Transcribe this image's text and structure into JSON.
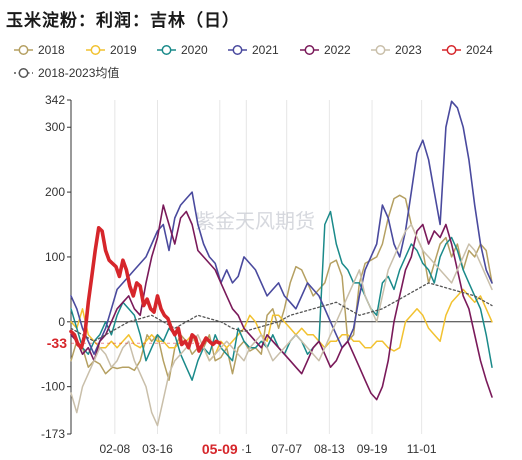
{
  "page": {
    "title": "玉米淀粉：利润：吉林（日）"
  },
  "watermark": "紫金天风期货",
  "chart_data": {
    "type": "line",
    "title": "玉米淀粉：利润：吉林（日）",
    "x_domain": [
      0,
      365
    ],
    "ylim": [
      -173,
      342
    ],
    "y_ticks": [
      342,
      300,
      200,
      100,
      0,
      -100,
      -173
    ],
    "x_ticks": [
      {
        "label": "02-08",
        "x": 38
      },
      {
        "label": "03-16",
        "x": 75
      },
      {
        "label": "05-09",
        "x": 129,
        "highlight": true
      },
      {
        "label": "·1",
        "x": 152
      },
      {
        "label": "07-07",
        "x": 187
      },
      {
        "label": "08-13",
        "x": 224
      },
      {
        "label": "09-19",
        "x": 261
      },
      {
        "label": "11-01",
        "x": 304
      }
    ],
    "latest": {
      "value": -33,
      "label": "-33"
    },
    "series": [
      {
        "name": "2018",
        "color": "#b5a062",
        "width": 1.5,
        "marker": "circle",
        "x": [
          0,
          5,
          10,
          15,
          20,
          25,
          30,
          36,
          40,
          45,
          50,
          55,
          60,
          66,
          70,
          75,
          80,
          85,
          90,
          95,
          100,
          105,
          110,
          115,
          120,
          125,
          130,
          135,
          140,
          145,
          150,
          155,
          160,
          165,
          170,
          175,
          180,
          185,
          190,
          195,
          200,
          205,
          210,
          215,
          220,
          225,
          230,
          235,
          240,
          245,
          250,
          255,
          260,
          265,
          270,
          275,
          280,
          285,
          290,
          295,
          300,
          305,
          310,
          315,
          320,
          325,
          330,
          335,
          340,
          345,
          350,
          355,
          360,
          365
        ],
        "y": [
          -60,
          -30,
          -40,
          -70,
          -60,
          -65,
          -80,
          -70,
          -72,
          -70,
          -70,
          -75,
          -60,
          -20,
          -30,
          -20,
          -60,
          -90,
          -40,
          -20,
          -30,
          -50,
          -40,
          -40,
          -20,
          -60,
          -55,
          -40,
          -80,
          -40,
          -30,
          -45,
          -40,
          -50,
          10,
          20,
          -10,
          20,
          60,
          85,
          80,
          60,
          40,
          50,
          60,
          90,
          95,
          70,
          -30,
          -20,
          60,
          90,
          95,
          100,
          120,
          160,
          190,
          195,
          190,
          150,
          130,
          110,
          60,
          90,
          120,
          130,
          100,
          120,
          80,
          110,
          100,
          120,
          110,
          60
        ]
      },
      {
        "name": "2019",
        "color": "#f2c230",
        "width": 1.5,
        "marker": "circle",
        "x": [
          0,
          5,
          10,
          15,
          20,
          25,
          30,
          35,
          40,
          45,
          50,
          55,
          60,
          65,
          70,
          75,
          80,
          85,
          90,
          95,
          100,
          105,
          110,
          115,
          120,
          125,
          130,
          135,
          140,
          145,
          150,
          155,
          160,
          165,
          170,
          175,
          180,
          185,
          190,
          195,
          200,
          205,
          210,
          215,
          220,
          225,
          230,
          235,
          240,
          245,
          250,
          255,
          260,
          265,
          270,
          275,
          280,
          285,
          290,
          295,
          300,
          305,
          310,
          315,
          320,
          325,
          330,
          335,
          340,
          345,
          350,
          355,
          360,
          365
        ],
        "y": [
          0,
          -10,
          20,
          -20,
          -30,
          -40,
          -40,
          -30,
          -40,
          -30,
          -20,
          -35,
          -40,
          -30,
          -20,
          -30,
          -30,
          -40,
          -40,
          -30,
          -30,
          -20,
          -40,
          -40,
          -60,
          -50,
          -30,
          -40,
          -30,
          -20,
          -10,
          10,
          0,
          -20,
          -30,
          10,
          10,
          0,
          -10,
          -20,
          -10,
          -20,
          -20,
          -30,
          -40,
          -30,
          -30,
          -20,
          -20,
          -30,
          -30,
          -40,
          -40,
          -30,
          -30,
          -40,
          -45,
          -40,
          0,
          10,
          20,
          10,
          -10,
          -20,
          -30,
          10,
          30,
          40,
          50,
          40,
          30,
          40,
          20,
          0
        ]
      },
      {
        "name": "2020",
        "color": "#1a8a8a",
        "width": 1.5,
        "marker": "circle",
        "x": [
          0,
          5,
          10,
          15,
          20,
          25,
          30,
          35,
          40,
          45,
          50,
          55,
          60,
          65,
          70,
          75,
          80,
          85,
          90,
          95,
          100,
          105,
          110,
          115,
          120,
          125,
          130,
          135,
          140,
          145,
          150,
          155,
          160,
          165,
          170,
          175,
          180,
          185,
          190,
          195,
          200,
          205,
          210,
          215,
          220,
          225,
          230,
          235,
          240,
          245,
          250,
          255,
          260,
          265,
          270,
          275,
          280,
          285,
          290,
          295,
          300,
          305,
          310,
          315,
          320,
          325,
          330,
          335,
          340,
          345,
          350,
          355,
          360,
          365
        ],
        "y": [
          20,
          -10,
          -40,
          -50,
          -30,
          -20,
          0,
          -20,
          10,
          30,
          20,
          10,
          -20,
          -60,
          -40,
          -20,
          -30,
          -10,
          -20,
          -50,
          -70,
          -90,
          -60,
          -40,
          -50,
          -20,
          -40,
          -50,
          -60,
          -10,
          -30,
          -40,
          -40,
          -30,
          -40,
          -20,
          -40,
          -50,
          -30,
          -20,
          -30,
          -50,
          -40,
          -30,
          150,
          170,
          120,
          90,
          80,
          60,
          60,
          40,
          20,
          10,
          60,
          70,
          50,
          80,
          100,
          120,
          110,
          90,
          80,
          60,
          100,
          120,
          130,
          110,
          80,
          60,
          40,
          20,
          -20,
          -70
        ]
      },
      {
        "name": "2021",
        "color": "#4a4a9e",
        "width": 1.6,
        "marker": "circle",
        "x": [
          0,
          5,
          10,
          15,
          20,
          25,
          30,
          35,
          40,
          45,
          50,
          55,
          60,
          65,
          70,
          75,
          80,
          85,
          90,
          95,
          100,
          105,
          110,
          115,
          120,
          125,
          130,
          135,
          140,
          145,
          150,
          155,
          160,
          165,
          170,
          175,
          180,
          185,
          190,
          195,
          200,
          205,
          210,
          215,
          220,
          225,
          230,
          235,
          240,
          245,
          250,
          255,
          260,
          265,
          270,
          275,
          280,
          285,
          290,
          295,
          300,
          305,
          310,
          315,
          320,
          325,
          330,
          335,
          340,
          345,
          350,
          355,
          360,
          365
        ],
        "y": [
          40,
          20,
          -10,
          -30,
          -50,
          -30,
          -10,
          20,
          50,
          60,
          70,
          80,
          90,
          100,
          120,
          140,
          150,
          110,
          160,
          180,
          190,
          200,
          150,
          120,
          100,
          90,
          60,
          80,
          60,
          70,
          100,
          90,
          80,
          60,
          40,
          50,
          60,
          40,
          30,
          20,
          40,
          60,
          50,
          40,
          20,
          0,
          -20,
          -40,
          -30,
          -10,
          40,
          80,
          100,
          120,
          180,
          160,
          120,
          100,
          140,
          200,
          260,
          280,
          250,
          200,
          150,
          300,
          340,
          330,
          300,
          250,
          180,
          120,
          80,
          60
        ]
      },
      {
        "name": "2022",
        "color": "#7a1a5a",
        "width": 1.6,
        "marker": "circle",
        "x": [
          0,
          5,
          10,
          15,
          20,
          25,
          30,
          35,
          40,
          45,
          50,
          55,
          60,
          65,
          70,
          75,
          80,
          85,
          90,
          95,
          100,
          105,
          110,
          115,
          120,
          125,
          130,
          135,
          140,
          145,
          150,
          155,
          160,
          165,
          170,
          175,
          180,
          185,
          190,
          195,
          200,
          205,
          210,
          215,
          220,
          225,
          230,
          235,
          240,
          245,
          250,
          255,
          260,
          265,
          270,
          275,
          280,
          285,
          290,
          295,
          300,
          305,
          310,
          315,
          320,
          325,
          330,
          335,
          340,
          345,
          350,
          355,
          360,
          365
        ],
        "y": [
          -20,
          -30,
          -50,
          -40,
          -60,
          -30,
          -20,
          0,
          20,
          30,
          40,
          20,
          10,
          60,
          100,
          130,
          180,
          150,
          120,
          160,
          170,
          150,
          110,
          100,
          90,
          80,
          60,
          40,
          20,
          10,
          -10,
          -20,
          -30,
          -40,
          -20,
          -30,
          -40,
          -50,
          -60,
          -70,
          -80,
          -60,
          -40,
          -30,
          -50,
          -70,
          -60,
          -40,
          -30,
          -50,
          -70,
          -90,
          -110,
          -120,
          -100,
          -60,
          0,
          40,
          80,
          100,
          140,
          150,
          120,
          140,
          130,
          150,
          120,
          80,
          40,
          20,
          -20,
          -60,
          -90,
          -116
        ]
      },
      {
        "name": "2023",
        "color": "#c9bfaa",
        "width": 1.5,
        "marker": "circle",
        "x": [
          0,
          5,
          10,
          15,
          20,
          25,
          30,
          35,
          40,
          45,
          50,
          55,
          60,
          65,
          70,
          75,
          80,
          85,
          90,
          95,
          100,
          105,
          110,
          115,
          120,
          125,
          130,
          135,
          140,
          145,
          150,
          155,
          160,
          165,
          170,
          175,
          180,
          185,
          190,
          195,
          200,
          205,
          210,
          215,
          220,
          225,
          230,
          235,
          240,
          245,
          250,
          255,
          260,
          265,
          270,
          275,
          280,
          285,
          290,
          295,
          300,
          305,
          310,
          315,
          320,
          325,
          330,
          335,
          340,
          345,
          350,
          355,
          360,
          365
        ],
        "y": [
          -110,
          -140,
          -100,
          -80,
          -60,
          -40,
          -50,
          -70,
          -60,
          -40,
          -30,
          -60,
          -80,
          -100,
          -140,
          -160,
          -120,
          -80,
          -60,
          -50,
          -40,
          -30,
          -20,
          -40,
          -60,
          -50,
          -40,
          -30,
          -40,
          -50,
          -60,
          -40,
          -30,
          -20,
          -40,
          -60,
          -50,
          -40,
          -30,
          -20,
          -30,
          -40,
          -50,
          -60,
          -40,
          -20,
          0,
          20,
          40,
          60,
          80,
          40,
          20,
          0,
          40,
          80,
          100,
          120,
          140,
          150,
          130,
          110,
          100,
          90,
          80,
          70,
          60,
          80,
          100,
          120,
          110,
          90,
          70,
          50
        ]
      },
      {
        "name": "2024",
        "color": "#d6262b",
        "width": 3.6,
        "marker": "circle",
        "x": [
          0,
          3,
          6,
          9,
          12,
          15,
          18,
          21,
          24,
          27,
          30,
          33,
          36,
          39,
          42,
          45,
          48,
          51,
          54,
          57,
          60,
          63,
          66,
          69,
          72,
          75,
          78,
          81,
          84,
          87,
          90,
          93,
          96,
          99,
          102,
          105,
          108,
          111,
          114,
          117,
          120,
          123,
          126,
          129
        ],
        "y": [
          -15,
          -20,
          -35,
          -40,
          -20,
          30,
          70,
          110,
          145,
          140,
          110,
          95,
          90,
          85,
          70,
          95,
          80,
          55,
          40,
          60,
          55,
          25,
          35,
          20,
          15,
          40,
          20,
          10,
          5,
          -10,
          -20,
          -10,
          -35,
          -30,
          -40,
          -20,
          -25,
          -45,
          -35,
          -25,
          -30,
          -35,
          -30,
          -33
        ]
      },
      {
        "name": "2018-2023均值",
        "color": "#555555",
        "width": 1.3,
        "dash": "2,2.5",
        "marker": "circle",
        "x": [
          0,
          10,
          20,
          30,
          40,
          50,
          60,
          70,
          80,
          90,
          100,
          110,
          120,
          130,
          140,
          150,
          160,
          170,
          180,
          190,
          200,
          210,
          220,
          230,
          240,
          250,
          260,
          270,
          280,
          290,
          300,
          310,
          320,
          330,
          340,
          350,
          360,
          365
        ],
        "y": [
          -10,
          -20,
          -30,
          -20,
          -10,
          0,
          5,
          10,
          0,
          -10,
          0,
          10,
          5,
          0,
          -10,
          -15,
          -10,
          -5,
          0,
          10,
          15,
          20,
          25,
          30,
          20,
          10,
          15,
          20,
          30,
          40,
          50,
          60,
          55,
          50,
          45,
          40,
          30,
          25
        ]
      }
    ]
  }
}
